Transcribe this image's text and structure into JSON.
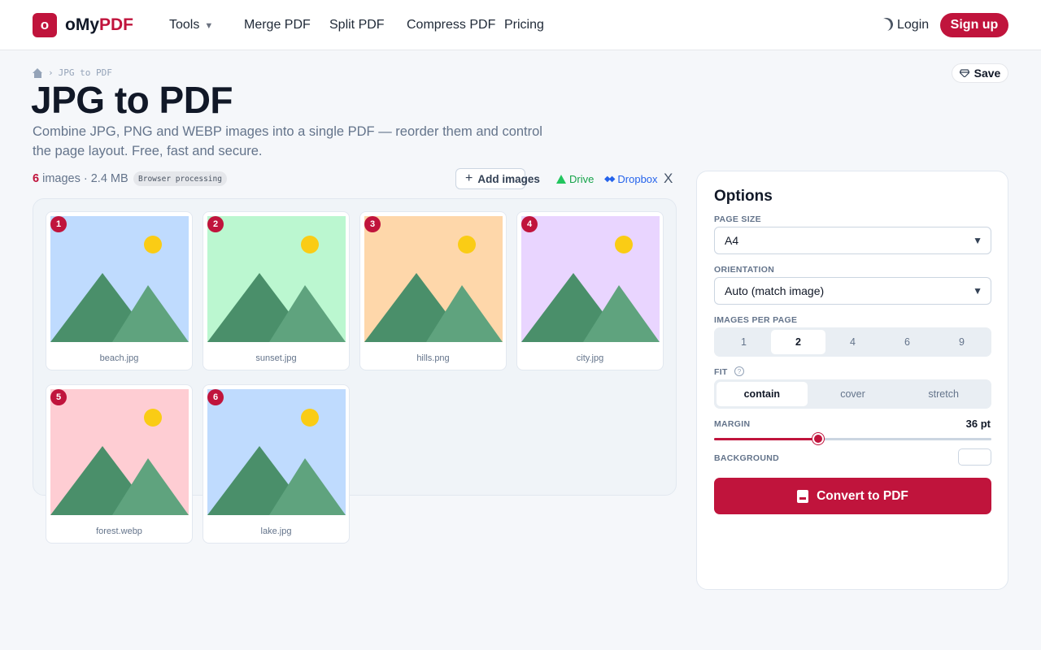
{
  "header": {
    "logo_mark": "o",
    "logo_prefix": "oMy",
    "logo_accent": "PDF",
    "nav": [
      {
        "label": "Tools",
        "caret": "▼"
      },
      {
        "label": "Merge PDF"
      },
      {
        "label": "Split PDF"
      },
      {
        "label": "Compress PDF"
      },
      {
        "label": "Pricing"
      }
    ],
    "login_label": "Login",
    "signup_label": "Sign up"
  },
  "breadcrumb": {
    "separator": "›",
    "current": "JPG to PDF"
  },
  "save_label": "Save",
  "page": {
    "title": "JPG to PDF",
    "subtitle": "Combine JPG, PNG and WEBP images into a single PDF — reorder them and control the page layout. Free, fast and secure."
  },
  "toolbar": {
    "count": "6",
    "count_suffix": "images",
    "size": "· 2.4 MB",
    "badge": "Browser processing",
    "add_label": "Add images",
    "drive_label": "Drive",
    "dropbox_label": "Dropbox",
    "close_label": "X"
  },
  "images": [
    {
      "index": "1",
      "name": "beach.jpg",
      "bg": "#bfdbfe"
    },
    {
      "index": "2",
      "name": "sunset.jpg",
      "bg": "#bbf7d0"
    },
    {
      "index": "3",
      "name": "hills.png",
      "bg": "#fed7aa"
    },
    {
      "index": "4",
      "name": "city.jpg",
      "bg": "#e9d5ff"
    },
    {
      "index": "5",
      "name": "forest.webp",
      "bg": "#fecdd3"
    },
    {
      "index": "6",
      "name": "lake.jpg",
      "bg": "#bfdbfe"
    }
  ],
  "options": {
    "title": "Options",
    "page_size_label": "PAGE SIZE",
    "page_size_value": "A4",
    "orientation_label": "ORIENTATION",
    "orientation_value": "Auto (match image)",
    "images_per_page_label": "IMAGES PER PAGE",
    "images_per_page_options": [
      "1",
      "2",
      "4",
      "6",
      "9"
    ],
    "images_per_page_selected": "2",
    "fit_label": "FIT",
    "fit_help": "?",
    "fit_options": [
      "contain",
      "cover",
      "stretch"
    ],
    "fit_selected": "contain",
    "margin_label": "MARGIN",
    "margin_value": "36 pt",
    "margin_fraction": 0.375,
    "background_label": "BACKGROUND",
    "background_color": "#ffffff",
    "convert_label": "Convert to PDF",
    "select_arrow": "▼"
  },
  "colors": {
    "accent": "#c0143c",
    "mountain_dark": "#4a8f6a",
    "mountain_light": "#5fa37e",
    "sun": "#facc15"
  }
}
